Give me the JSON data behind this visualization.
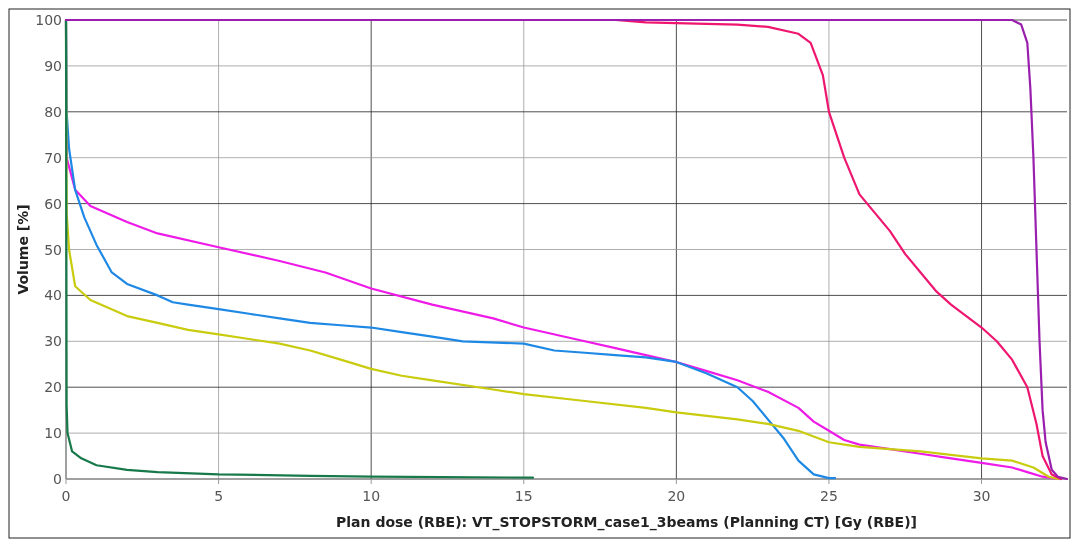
{
  "chart_data": {
    "type": "line",
    "xlabel": "Plan dose (RBE): VT_STOPSTORM_case1_3beams (Planning CT) [Gy (RBE)]",
    "ylabel": "Volume [%]",
    "xlim": [
      0,
      32.8
    ],
    "xticks": [
      0,
      5,
      10,
      15,
      20,
      25,
      30
    ],
    "ylim": [
      0,
      100
    ],
    "yticks": [
      0,
      10,
      20,
      30,
      40,
      50,
      60,
      70,
      80,
      90,
      100
    ],
    "grid": true,
    "marker": "none",
    "line_style": "solid",
    "series": [
      {
        "color": "#ee1be8",
        "x": [
          0,
          0.02,
          0.3,
          0.8,
          2,
          3,
          5,
          7,
          8.5,
          10,
          12,
          14,
          15,
          17,
          18,
          19,
          20,
          21,
          22,
          23,
          24,
          24.5,
          25,
          25.5,
          26,
          27,
          28,
          29,
          30,
          31,
          31.5,
          32,
          32.5
        ],
        "values": [
          100,
          70,
          63,
          59.5,
          56,
          53.5,
          50.5,
          47.5,
          45,
          41.5,
          38,
          35,
          33,
          30,
          28.5,
          27,
          25.5,
          23.5,
          21.5,
          19,
          15.5,
          12.5,
          10.5,
          8.5,
          7.5,
          6.5,
          5.5,
          4.5,
          3.5,
          2.5,
          1.5,
          0.5,
          0
        ]
      },
      {
        "color": "#1e88e5",
        "x": [
          0,
          0.02,
          0.1,
          0.3,
          0.6,
          1,
          1.5,
          2,
          3,
          3.5,
          4,
          5,
          6,
          7,
          8,
          9,
          10,
          11,
          12,
          13,
          15,
          16,
          17,
          18,
          19,
          20,
          21,
          22,
          22.5,
          23,
          23.5,
          24,
          24.5,
          25,
          25.2
        ],
        "values": [
          100,
          80,
          72,
          63,
          57,
          51,
          45,
          42.5,
          40,
          38.5,
          38,
          37,
          36,
          35,
          34,
          33.5,
          33,
          32,
          31,
          30,
          29.5,
          28,
          27.5,
          27,
          26.5,
          25.5,
          23,
          20,
          17,
          13,
          9,
          4,
          1,
          0.2,
          0.2
        ]
      },
      {
        "color": "#c9cc0e",
        "x": [
          0,
          0.02,
          0.1,
          0.3,
          0.8,
          2,
          3,
          4,
          5,
          6,
          7,
          8,
          9,
          10,
          11,
          12,
          14,
          15,
          17,
          19,
          20,
          22,
          23,
          24,
          25,
          26,
          28,
          30,
          31,
          31.7,
          32.2,
          32.5
        ],
        "values": [
          100,
          58,
          50,
          42,
          39,
          35.5,
          34,
          32.5,
          31.5,
          30.5,
          29.5,
          28,
          26,
          24,
          22.5,
          21.5,
          19.5,
          18.5,
          17,
          15.5,
          14.5,
          13,
          12,
          10.5,
          8,
          7,
          6,
          4.5,
          4,
          2.5,
          0.5,
          0
        ]
      },
      {
        "color": "#17794a",
        "x": [
          0,
          0.02,
          0.05,
          0.2,
          0.5,
          1,
          2,
          3,
          5,
          8,
          10,
          15.3
        ],
        "values": [
          100,
          16,
          10,
          6,
          4.5,
          3,
          2,
          1.5,
          1,
          0.7,
          0.5,
          0.3
        ]
      },
      {
        "color": "#ef1670",
        "x": [
          0,
          18,
          19,
          22,
          23,
          24,
          24.4,
          24.8,
          25,
          25.5,
          26,
          27,
          27.5,
          28.5,
          29,
          30,
          30.5,
          31,
          31.5,
          31.8,
          32,
          32.3,
          32.6
        ],
        "values": [
          100,
          100,
          99.5,
          99,
          98.5,
          97,
          95,
          88,
          80,
          70,
          62,
          54,
          49,
          41,
          38,
          33,
          30,
          26,
          20,
          12,
          5,
          1,
          0
        ]
      },
      {
        "color": "#9a1fae",
        "x": [
          0,
          31,
          31.3,
          31.5,
          31.6,
          31.7,
          31.8,
          31.9,
          32,
          32.1,
          32.3,
          32.5,
          32.8
        ],
        "values": [
          100,
          100,
          99,
          95,
          85,
          70,
          50,
          30,
          15,
          8,
          2,
          0.5,
          0
        ]
      }
    ]
  }
}
